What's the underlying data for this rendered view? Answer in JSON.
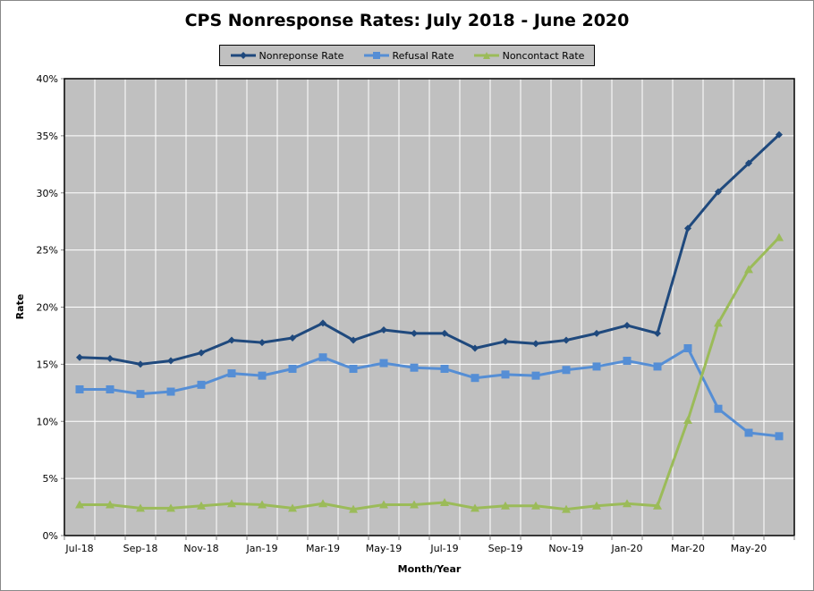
{
  "chart_data": {
    "type": "line",
    "title": "CPS Nonresponse Rates: July 2018 - June 2020",
    "xlabel": "Month/Year",
    "ylabel": "Rate",
    "ylim": [
      0,
      40
    ],
    "yticks": [
      "0%",
      "5%",
      "10%",
      "15%",
      "20%",
      "25%",
      "30%",
      "35%",
      "40%"
    ],
    "xtick_labels": [
      "Jul-18",
      "Sep-18",
      "Nov-18",
      "Jan-19",
      "Mar-19",
      "May-19",
      "Jul-19",
      "Sep-19",
      "Nov-19",
      "Jan-20",
      "Mar-20",
      "May-20"
    ],
    "categories": [
      "Jul-18",
      "Aug-18",
      "Sep-18",
      "Oct-18",
      "Nov-18",
      "Dec-18",
      "Jan-19",
      "Feb-19",
      "Mar-19",
      "Apr-19",
      "May-19",
      "Jun-19",
      "Jul-19",
      "Aug-19",
      "Sep-19",
      "Oct-19",
      "Nov-19",
      "Dec-19",
      "Jan-20",
      "Feb-20",
      "Mar-20",
      "Apr-20",
      "May-20",
      "Jun-20"
    ],
    "grid": true,
    "legend_position": "top",
    "plot_background": "#c0c0c0",
    "series": [
      {
        "name": "Nonreponse Rate",
        "color": "#1f497d",
        "marker": "diamond",
        "values": [
          15.6,
          15.5,
          15.0,
          15.3,
          16.0,
          17.1,
          16.9,
          17.3,
          18.6,
          17.1,
          18.0,
          17.7,
          17.7,
          16.4,
          17.0,
          16.8,
          17.1,
          17.7,
          18.4,
          17.7,
          26.9,
          30.1,
          32.6,
          35.1
        ]
      },
      {
        "name": "Refusal Rate",
        "color": "#558ed5",
        "marker": "square",
        "values": [
          12.8,
          12.8,
          12.4,
          12.6,
          13.2,
          14.2,
          14.0,
          14.6,
          15.6,
          14.6,
          15.1,
          14.7,
          14.6,
          13.8,
          14.1,
          14.0,
          14.5,
          14.8,
          15.3,
          14.8,
          16.4,
          11.1,
          9.0,
          8.7
        ]
      },
      {
        "name": "Noncontact Rate",
        "color": "#9bbb59",
        "marker": "triangle",
        "values": [
          2.7,
          2.7,
          2.4,
          2.4,
          2.6,
          2.8,
          2.7,
          2.4,
          2.8,
          2.3,
          2.7,
          2.7,
          2.9,
          2.4,
          2.6,
          2.6,
          2.3,
          2.6,
          2.8,
          2.6,
          10.1,
          18.6,
          23.3,
          26.1
        ]
      }
    ]
  }
}
